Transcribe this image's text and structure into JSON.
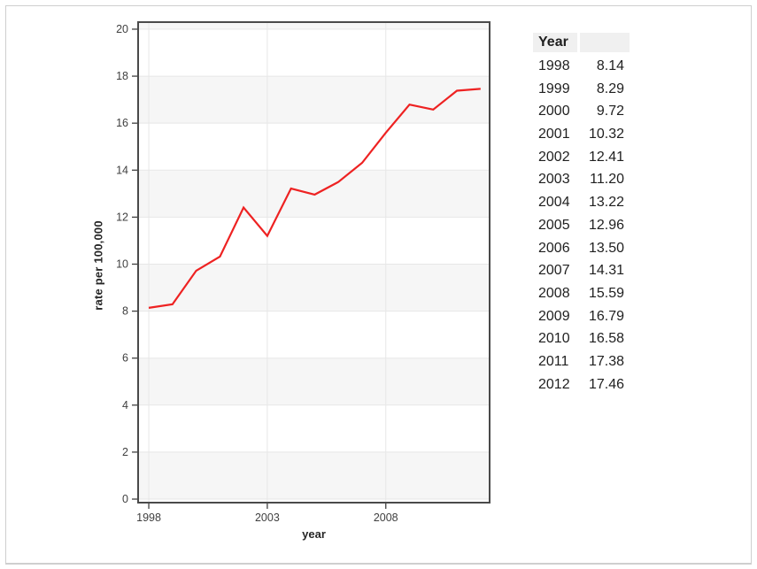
{
  "page": {
    "background": "#ffffff",
    "frame_border_color": "#cfcfcf"
  },
  "chart_data": {
    "type": "line",
    "title": "",
    "xlabel": "year",
    "ylabel": "rate per 100,000",
    "x": [
      1998,
      1999,
      2000,
      2001,
      2002,
      2003,
      2004,
      2005,
      2006,
      2007,
      2008,
      2009,
      2010,
      2011,
      2012
    ],
    "values": [
      8.14,
      8.29,
      9.72,
      10.32,
      12.41,
      11.2,
      13.22,
      12.96,
      13.5,
      14.31,
      15.59,
      16.79,
      16.58,
      17.38,
      17.46
    ],
    "series_name": "rate per 100,000",
    "xlim": [
      1997.55,
      2012.38
    ],
    "ylim": [
      -0.15,
      20.3
    ],
    "x_ticks": [
      1998,
      2003,
      2008
    ],
    "y_ticks": [
      0,
      2,
      4,
      6,
      8,
      10,
      12,
      14,
      16,
      18,
      20
    ],
    "grid": true,
    "legend": "none",
    "line_color": "#ee2222",
    "band_color": "#f6f6f6",
    "grid_color": "#e7e7e7",
    "panel_border_color": "#4a4a4a",
    "tick_color": "#404040",
    "tick_label_color": "#3f3f3f"
  },
  "table": {
    "header": [
      "Year",
      ""
    ],
    "rows": [
      [
        "1998",
        "8.14"
      ],
      [
        "1999",
        "8.29"
      ],
      [
        "2000",
        "9.72"
      ],
      [
        "2001",
        "10.32"
      ],
      [
        "2002",
        "12.41"
      ],
      [
        "2003",
        "11.20"
      ],
      [
        "2004",
        "13.22"
      ],
      [
        "2005",
        "12.96"
      ],
      [
        "2006",
        "13.50"
      ],
      [
        "2007",
        "14.31"
      ],
      [
        "2008",
        "15.59"
      ],
      [
        "2009",
        "16.79"
      ],
      [
        "2010",
        "16.58"
      ],
      [
        "2011",
        "17.38"
      ],
      [
        "2012",
        "17.46"
      ]
    ]
  }
}
